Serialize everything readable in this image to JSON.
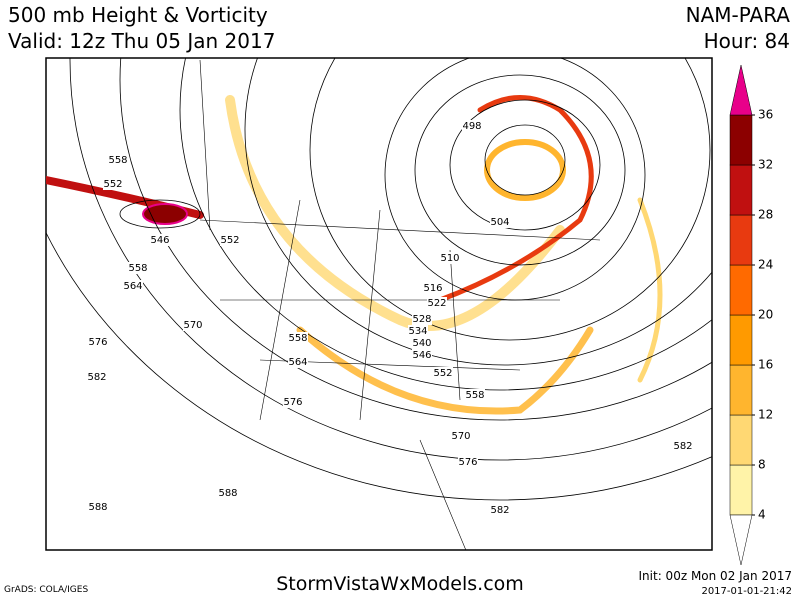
{
  "header": {
    "title": "500 mb Height & Vorticity",
    "valid": "Valid: 12z Thu 05 Jan 2017",
    "model": "NAM-PARA",
    "hour": "Hour: 84"
  },
  "colorbar": {
    "ticks": [
      4,
      8,
      12,
      16,
      20,
      24,
      28,
      32,
      36
    ],
    "colors": [
      "#fff3a8",
      "#ffd873",
      "#ffb52e",
      "#ff9a00",
      "#ff6a00",
      "#e83a10",
      "#c01010",
      "#8c0000"
    ],
    "over_color": "#e8008a"
  },
  "contour_labels": [
    558,
    552,
    546,
    552,
    558,
    564,
    570,
    576,
    582,
    498,
    504,
    510,
    516,
    522,
    528,
    534,
    540,
    546,
    552,
    558,
    564,
    576,
    558,
    570,
    576,
    582,
    582,
    588,
    588
  ],
  "footer": {
    "credit": "GrADS: COLA/IGES",
    "site": "StormVistaWxModels.com",
    "init": "Init: 00z Mon 02 Jan 2017",
    "timestamp": "2017-01-01-21:42"
  }
}
